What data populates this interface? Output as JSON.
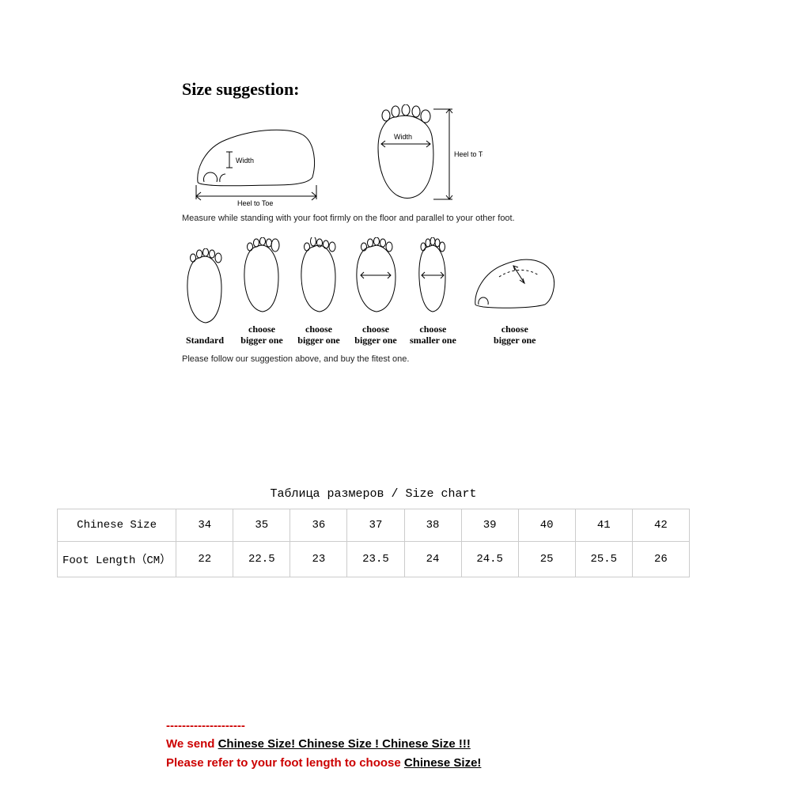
{
  "diagram": {
    "title": "Size suggestion:",
    "width_label": "Width",
    "heel_to_toe_label": "Heel to Toe",
    "measure_caption": "Measure while standing with your foot firmly on the floor and parallel to your other foot.",
    "foot_labels": [
      "Standard",
      "choose\nbigger one",
      "choose\nbigger one",
      "choose\nbigger one",
      "choose\nsmaller one",
      "choose\nbigger one"
    ],
    "bottom_caption": "Please follow our suggestion above, and buy the fitest one."
  },
  "table": {
    "title": "Таблица размеров / Size chart",
    "rows": [
      {
        "label": "Chinese Size",
        "values": [
          "34",
          "35",
          "36",
          "37",
          "38",
          "39",
          "40",
          "41",
          "42"
        ]
      },
      {
        "label": "Foot Length（CM）",
        "values": [
          "22",
          "22.5",
          "23",
          "23.5",
          "24",
          "24.5",
          "25",
          "25.5",
          "26"
        ]
      }
    ],
    "border_color": "#cccccc",
    "font_family": "Courier New"
  },
  "notice": {
    "dashes": "--------------------",
    "line1_prefix": "We send  ",
    "line1_underlined": "Chinese Size! Chinese Size ! Chinese Size !!!",
    "line2_prefix": "Please refer to your foot length to choose ",
    "line2_underlined": "Chinese Size! ",
    "red_color": "#cc0000"
  }
}
